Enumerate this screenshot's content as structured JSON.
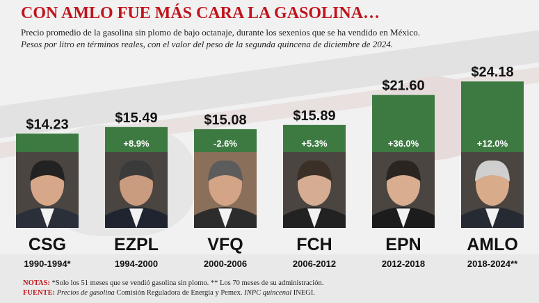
{
  "header": {
    "title": "CON AMLO FUE MÁS CARA LA GASOLINA…",
    "subtitle": "Precio promedio de la gasolina sin plomo de bajo octanaje, durante los sexenios que se ha vendido en México.",
    "subtitle2": "Pesos por litro en términos reales, con el valor del peso de la segunda quincena de diciembre de 2024."
  },
  "chart_data": {
    "type": "bar",
    "categories": [
      "CSG",
      "EZPL",
      "VFQ",
      "FCH",
      "EPN",
      "AMLO"
    ],
    "periods": [
      "1990-1994*",
      "1994-2000",
      "2000-2006",
      "2006-2012",
      "2012-2018",
      "2018-2024**"
    ],
    "values": [
      14.23,
      15.49,
      15.08,
      15.89,
      21.6,
      24.18
    ],
    "value_labels": [
      "$14.23",
      "$15.49",
      "$15.08",
      "$15.89",
      "$21.60",
      "$24.18"
    ],
    "change_labels": [
      "",
      "+8.9%",
      "-2.6%",
      "+5.3%",
      "+36.0%",
      "+12.0%"
    ],
    "title": "",
    "xlabel": "",
    "ylabel": "",
    "bar_color": "#3d7a42",
    "grid": false,
    "legend": "none",
    "portraits_below_bars": true
  },
  "footer": {
    "notes_label": "NOTAS:",
    "notes_text": "*Solo los 51 meses que se vendió gasolina sin plomo. ** Los 70 meses de su administración.",
    "source_label": "FUENTE:",
    "source_italic1": "Precios de gasolina",
    "source_text1": "Comisión Reguladora de Energía y Pemex.",
    "source_italic2": "INPC quincenal",
    "source_text2": "INEGI."
  },
  "colors": {
    "title": "#c0141c",
    "bar": "#3d7a42",
    "background": "#f1f1f1"
  }
}
